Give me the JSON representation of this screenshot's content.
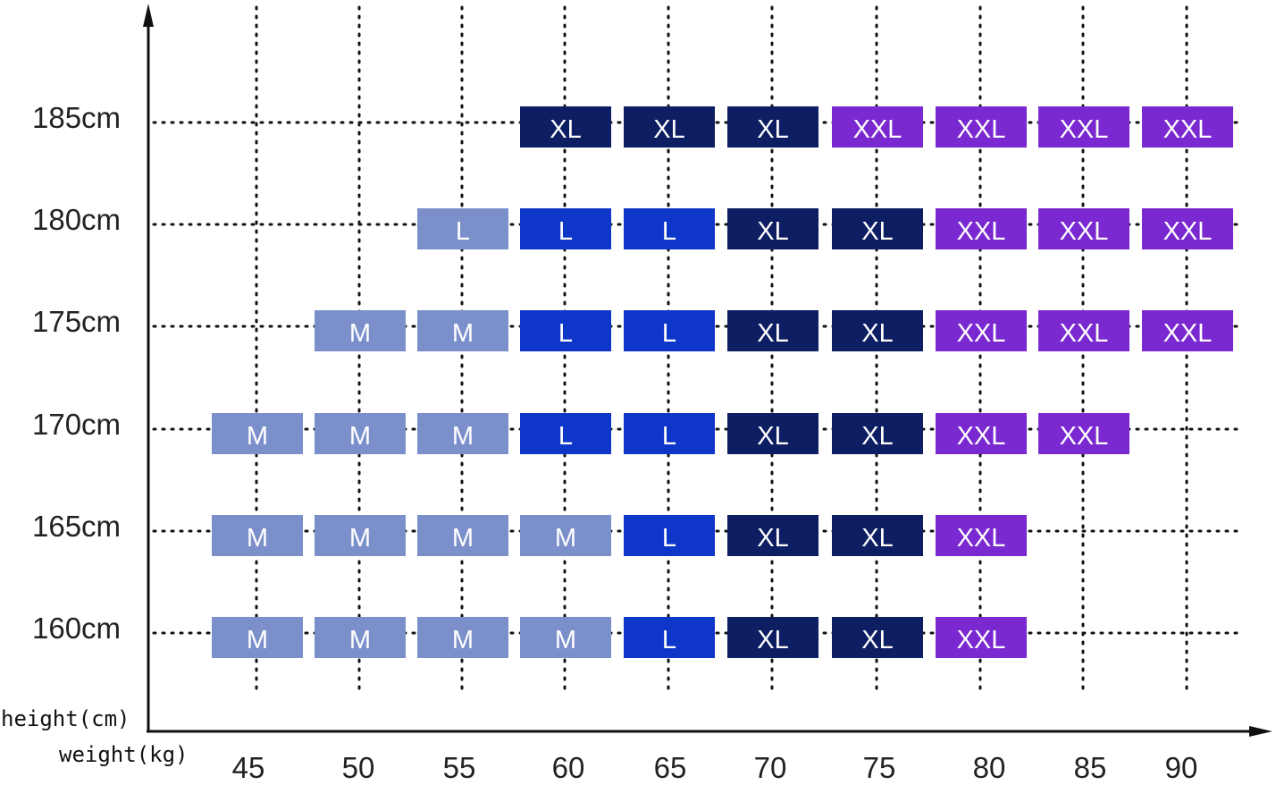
{
  "chart_data": {
    "type": "table",
    "ylabel": "height(cm)",
    "xlabel": "weight(kg)",
    "x_ticks": [
      "45",
      "50",
      "55",
      "60",
      "65",
      "70",
      "75",
      "80",
      "85",
      "90"
    ],
    "y_ticks": [
      "185cm",
      "180cm",
      "175cm",
      "170cm",
      "165cm",
      "160cm"
    ],
    "grid": true,
    "colors": {
      "M": "#7b8fcb",
      "L": "#0e36c8",
      "XL": "#0d1e63",
      "XXL": "#7a28d0",
      "axis": "#111111",
      "grid": "#111111"
    },
    "rows": [
      {
        "height": "185cm",
        "cells": [
          {
            "weight": 60,
            "size": "XL"
          },
          {
            "weight": 65,
            "size": "XL"
          },
          {
            "weight": 70,
            "size": "XL"
          },
          {
            "weight": 75,
            "size": "XXL"
          },
          {
            "weight": 80,
            "size": "XXL"
          },
          {
            "weight": 85,
            "size": "XXL"
          },
          {
            "weight": 90,
            "size": "XXL"
          }
        ]
      },
      {
        "height": "180cm",
        "cells": [
          {
            "weight": 55,
            "size": "L",
            "tone": "light"
          },
          {
            "weight": 60,
            "size": "L"
          },
          {
            "weight": 65,
            "size": "L"
          },
          {
            "weight": 70,
            "size": "XL"
          },
          {
            "weight": 75,
            "size": "XL"
          },
          {
            "weight": 80,
            "size": "XXL"
          },
          {
            "weight": 85,
            "size": "XXL"
          },
          {
            "weight": 90,
            "size": "XXL"
          }
        ]
      },
      {
        "height": "175cm",
        "cells": [
          {
            "weight": 50,
            "size": "M"
          },
          {
            "weight": 55,
            "size": "M"
          },
          {
            "weight": 60,
            "size": "L"
          },
          {
            "weight": 65,
            "size": "L"
          },
          {
            "weight": 70,
            "size": "XL"
          },
          {
            "weight": 75,
            "size": "XL"
          },
          {
            "weight": 80,
            "size": "XXL"
          },
          {
            "weight": 85,
            "size": "XXL"
          },
          {
            "weight": 90,
            "size": "XXL"
          }
        ]
      },
      {
        "height": "170cm",
        "cells": [
          {
            "weight": 45,
            "size": "M"
          },
          {
            "weight": 50,
            "size": "M"
          },
          {
            "weight": 55,
            "size": "M"
          },
          {
            "weight": 60,
            "size": "L"
          },
          {
            "weight": 65,
            "size": "L"
          },
          {
            "weight": 70,
            "size": "XL"
          },
          {
            "weight": 75,
            "size": "XL"
          },
          {
            "weight": 80,
            "size": "XXL"
          },
          {
            "weight": 85,
            "size": "XXL"
          }
        ]
      },
      {
        "height": "165cm",
        "cells": [
          {
            "weight": 45,
            "size": "M"
          },
          {
            "weight": 50,
            "size": "M"
          },
          {
            "weight": 55,
            "size": "M"
          },
          {
            "weight": 60,
            "size": "M"
          },
          {
            "weight": 65,
            "size": "L"
          },
          {
            "weight": 70,
            "size": "XL"
          },
          {
            "weight": 75,
            "size": "XL"
          },
          {
            "weight": 80,
            "size": "XXL"
          }
        ]
      },
      {
        "height": "160cm",
        "cells": [
          {
            "weight": 45,
            "size": "M"
          },
          {
            "weight": 50,
            "size": "M"
          },
          {
            "weight": 55,
            "size": "M"
          },
          {
            "weight": 60,
            "size": "M"
          },
          {
            "weight": 65,
            "size": "L"
          },
          {
            "weight": 70,
            "size": "XL"
          },
          {
            "weight": 75,
            "size": "XL"
          },
          {
            "weight": 80,
            "size": "XXL"
          }
        ]
      }
    ]
  }
}
